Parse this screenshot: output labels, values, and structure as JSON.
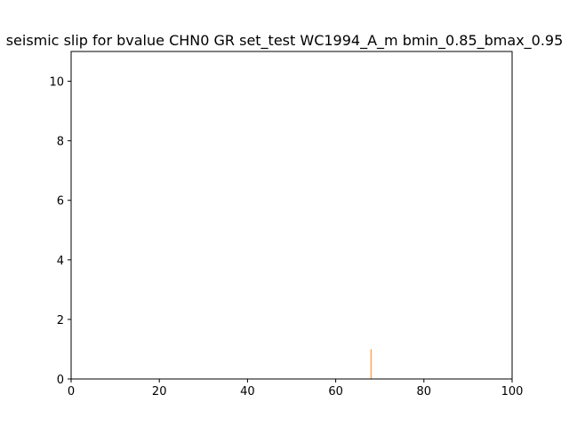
{
  "chart_data": {
    "type": "bar",
    "title": "seismic slip for bvalue CHN0 GR set_test WC1994_A_m bmin_0.85_bmax_0.95",
    "xlabel": "",
    "ylabel": "",
    "xlim": [
      0,
      100
    ],
    "ylim": [
      0,
      11
    ],
    "xticks": [
      0,
      20,
      40,
      60,
      80,
      100
    ],
    "yticks": [
      0,
      2,
      4,
      6,
      8,
      10
    ],
    "grid": false,
    "series": [
      {
        "color": "#ff7f0e",
        "points": [
          {
            "x": 68,
            "y": 1
          }
        ]
      }
    ]
  }
}
